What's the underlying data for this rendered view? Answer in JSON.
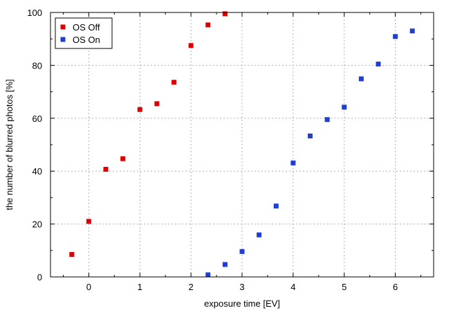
{
  "chart_data": {
    "type": "scatter",
    "xlabel": "exposure time [EV]",
    "ylabel": "the number of blurred photos [%]",
    "xlim": [
      -0.75,
      6.75
    ],
    "ylim": [
      0,
      100
    ],
    "xticks": [
      0,
      1,
      2,
      3,
      4,
      5,
      6
    ],
    "yticks": [
      0,
      20,
      40,
      60,
      80,
      100
    ],
    "x_minor_ticks": [
      -0.5,
      0.5,
      1.5,
      2.5,
      3.5,
      4.5,
      5.5,
      6.5
    ],
    "y_minor_ticks": [
      10,
      30,
      50,
      70,
      90
    ],
    "grid": true,
    "legend_position": "top-left",
    "series": [
      {
        "name": "OS Off",
        "color": "#dd0000",
        "x": [
          -0.333,
          0,
          0.333,
          0.667,
          1,
          1.333,
          1.667,
          2,
          2.333,
          2.667
        ],
        "y": [
          8.5,
          21,
          40.7,
          44.7,
          63.3,
          65.5,
          73.6,
          87.5,
          95.3,
          99.5
        ]
      },
      {
        "name": "OS On",
        "color": "#1f3fd0",
        "x": [
          2.333,
          2.667,
          3,
          3.333,
          3.667,
          4,
          4.333,
          4.667,
          5,
          5.333,
          5.667,
          6,
          6.333
        ],
        "y": [
          0.8,
          4.7,
          9.6,
          15.9,
          26.8,
          43.1,
          53.3,
          59.5,
          64.2,
          74.9,
          80.5,
          90.9,
          93
        ]
      }
    ]
  }
}
